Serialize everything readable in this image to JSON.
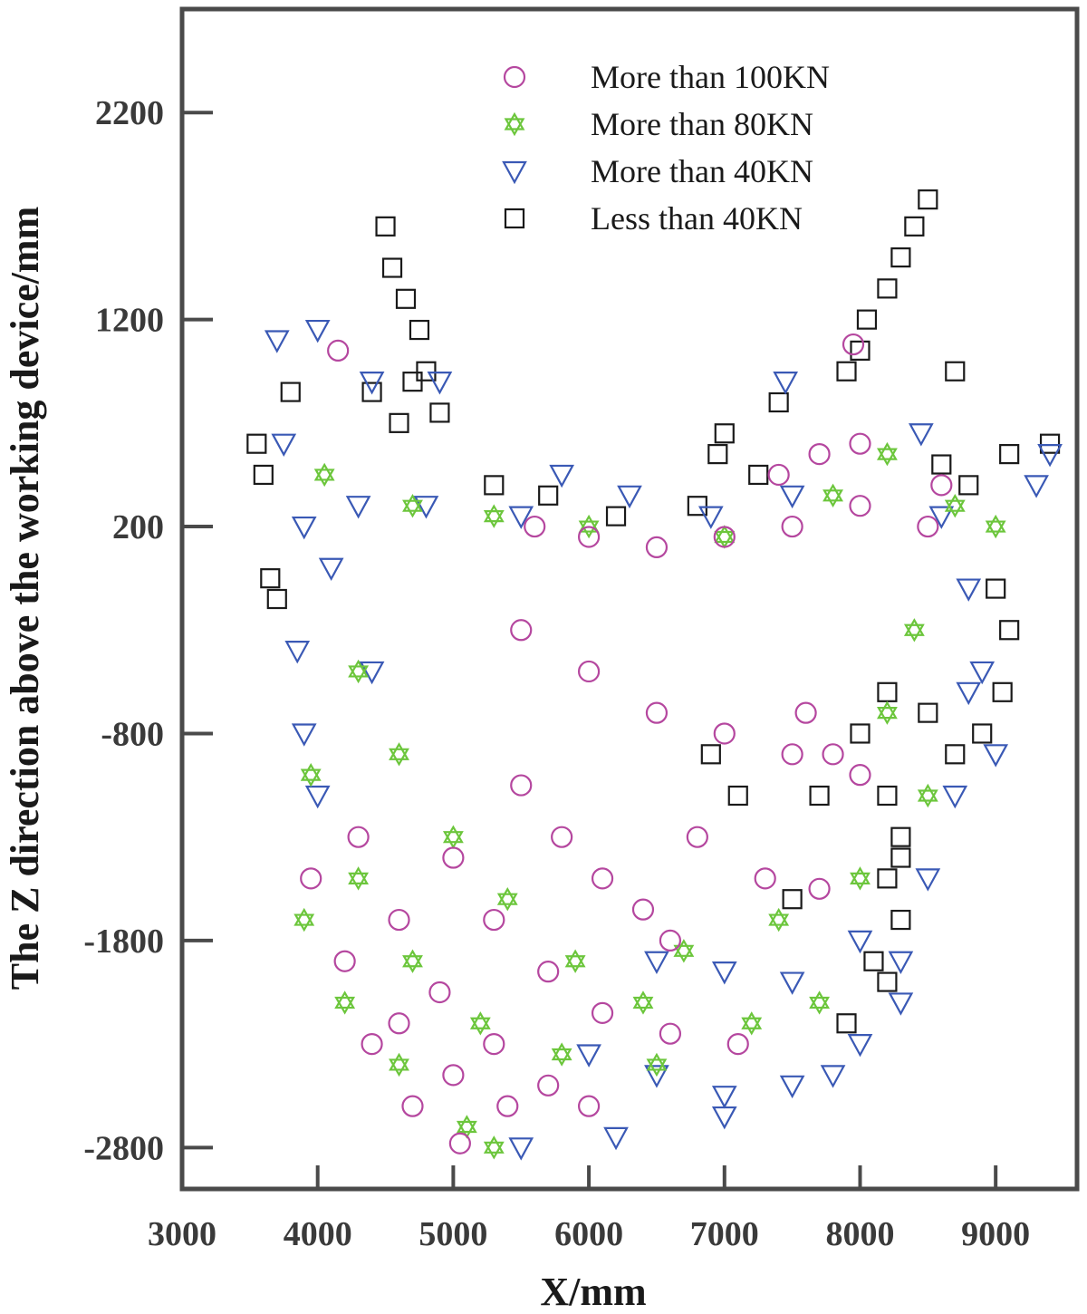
{
  "chart_data": {
    "type": "scatter",
    "title": "",
    "xlabel": "X/mm",
    "ylabel": "The Z direction above the working device/mm",
    "xlim": [
      3000,
      9600
    ],
    "ylim": [
      -3000,
      2700
    ],
    "xticks": [
      3000,
      4000,
      5000,
      6000,
      7000,
      8000,
      9000
    ],
    "xtick_labels": [
      "3000",
      "4000",
      "5000",
      "6000",
      "7000",
      "8000",
      "9000"
    ],
    "yticks": [
      -2800,
      -1800,
      -800,
      200,
      1200,
      2200
    ],
    "ytick_labels": [
      "-2800",
      "-1800",
      "-800",
      "200",
      "1200",
      "2200"
    ],
    "grid": false,
    "legend_position": "top-right",
    "series": [
      {
        "name": "More than 100KN",
        "marker": "circle",
        "color": "#b5479f",
        "points": [
          [
            4150,
            1050
          ],
          [
            7950,
            1080
          ],
          [
            5500,
            -1050
          ],
          [
            5800,
            -1300
          ],
          [
            6100,
            -1500
          ],
          [
            6400,
            -1650
          ],
          [
            6600,
            -1800
          ],
          [
            5000,
            -1400
          ],
          [
            5300,
            -1700
          ],
          [
            5700,
            -1950
          ],
          [
            6100,
            -2150
          ],
          [
            6600,
            -2250
          ],
          [
            7100,
            -2300
          ],
          [
            4300,
            -1300
          ],
          [
            4600,
            -1700
          ],
          [
            4900,
            -2050
          ],
          [
            5300,
            -2300
          ],
          [
            5700,
            -2500
          ],
          [
            6000,
            -2600
          ],
          [
            3950,
            -1500
          ],
          [
            4200,
            -1900
          ],
          [
            4600,
            -2200
          ],
          [
            5000,
            -2450
          ],
          [
            5400,
            -2600
          ],
          [
            4400,
            -2300
          ],
          [
            4700,
            -2600
          ],
          [
            5050,
            -2780
          ],
          [
            5600,
            200
          ],
          [
            6000,
            150
          ],
          [
            6500,
            100
          ],
          [
            7000,
            150
          ],
          [
            7500,
            200
          ],
          [
            8000,
            300
          ],
          [
            8500,
            200
          ],
          [
            7400,
            450
          ],
          [
            7700,
            550
          ],
          [
            8000,
            600
          ],
          [
            8600,
            400
          ],
          [
            5500,
            -300
          ],
          [
            6000,
            -500
          ],
          [
            6500,
            -700
          ],
          [
            7000,
            -800
          ],
          [
            7500,
            -900
          ],
          [
            8000,
            -1000
          ],
          [
            7600,
            -700
          ],
          [
            7800,
            -900
          ],
          [
            6800,
            -1300
          ],
          [
            7300,
            -1500
          ],
          [
            7700,
            -1550
          ]
        ]
      },
      {
        "name": "More than 80KN",
        "marker": "star",
        "color": "#6cc63c",
        "points": [
          [
            4050,
            450
          ],
          [
            4700,
            300
          ],
          [
            5300,
            250
          ],
          [
            6000,
            200
          ],
          [
            7000,
            150
          ],
          [
            7800,
            350
          ],
          [
            8200,
            550
          ],
          [
            8700,
            300
          ],
          [
            9000,
            200
          ],
          [
            4300,
            -500
          ],
          [
            4600,
            -900
          ],
          [
            5000,
            -1300
          ],
          [
            5400,
            -1600
          ],
          [
            5900,
            -1900
          ],
          [
            6400,
            -2100
          ],
          [
            7200,
            -2200
          ],
          [
            7700,
            -2100
          ],
          [
            3950,
            -1000
          ],
          [
            4300,
            -1500
          ],
          [
            4700,
            -1900
          ],
          [
            5200,
            -2200
          ],
          [
            5800,
            -2350
          ],
          [
            6500,
            -2400
          ],
          [
            3900,
            -1700
          ],
          [
            4200,
            -2100
          ],
          [
            4600,
            -2400
          ],
          [
            5100,
            -2700
          ],
          [
            5300,
            -2800
          ],
          [
            6700,
            -1850
          ],
          [
            7400,
            -1700
          ],
          [
            8000,
            -1500
          ],
          [
            8500,
            -1100
          ],
          [
            8200,
            -700
          ],
          [
            8400,
            -300
          ]
        ]
      },
      {
        "name": "More than 40KN",
        "marker": "triangle-down",
        "color": "#3a59b5",
        "points": [
          [
            3700,
            1100
          ],
          [
            4000,
            1150
          ],
          [
            4400,
            900
          ],
          [
            4900,
            900
          ],
          [
            5800,
            450
          ],
          [
            6300,
            350
          ],
          [
            6900,
            250
          ],
          [
            7500,
            350
          ],
          [
            7450,
            900
          ],
          [
            8450,
            650
          ],
          [
            3750,
            600
          ],
          [
            3900,
            200
          ],
          [
            4100,
            0
          ],
          [
            3850,
            -400
          ],
          [
            3900,
            -800
          ],
          [
            4000,
            -1100
          ],
          [
            4400,
            -500
          ],
          [
            4300,
            300
          ],
          [
            4800,
            300
          ],
          [
            5500,
            250
          ],
          [
            6000,
            -2350
          ],
          [
            6500,
            -2450
          ],
          [
            7000,
            -2550
          ],
          [
            7500,
            -2500
          ],
          [
            8000,
            -2300
          ],
          [
            8300,
            -1900
          ],
          [
            8500,
            -1500
          ],
          [
            5500,
            -2800
          ],
          [
            6200,
            -2750
          ],
          [
            7000,
            -2650
          ],
          [
            7800,
            -2450
          ],
          [
            8300,
            -2100
          ],
          [
            6500,
            -1900
          ],
          [
            7000,
            -1950
          ],
          [
            7500,
            -2000
          ],
          [
            8000,
            -1800
          ],
          [
            8800,
            -100
          ],
          [
            8900,
            -500
          ],
          [
            9000,
            -900
          ],
          [
            9300,
            400
          ],
          [
            9400,
            550
          ],
          [
            8600,
            250
          ],
          [
            8700,
            -1100
          ],
          [
            8800,
            -600
          ]
        ]
      },
      {
        "name": "Less than 40KN",
        "marker": "square",
        "color": "#1a1a1a",
        "points": [
          [
            3550,
            600
          ],
          [
            3650,
            -50
          ],
          [
            3700,
            -150
          ],
          [
            3600,
            450
          ],
          [
            3800,
            850
          ],
          [
            4500,
            1650
          ],
          [
            4550,
            1450
          ],
          [
            4650,
            1300
          ],
          [
            4750,
            1150
          ],
          [
            4800,
            950
          ],
          [
            4400,
            850
          ],
          [
            4600,
            700
          ],
          [
            4900,
            750
          ],
          [
            4700,
            900
          ],
          [
            5300,
            400
          ],
          [
            5700,
            350
          ],
          [
            6200,
            250
          ],
          [
            6800,
            300
          ],
          [
            7000,
            650
          ],
          [
            6950,
            550
          ],
          [
            7400,
            800
          ],
          [
            7250,
            450
          ],
          [
            7900,
            950
          ],
          [
            8000,
            1050
          ],
          [
            8050,
            1200
          ],
          [
            8200,
            1350
          ],
          [
            8300,
            1500
          ],
          [
            8400,
            1650
          ],
          [
            8500,
            1780
          ],
          [
            8700,
            950
          ],
          [
            8600,
            500
          ],
          [
            8800,
            400
          ],
          [
            9100,
            550
          ],
          [
            9400,
            600
          ],
          [
            9000,
            -100
          ],
          [
            9100,
            -300
          ],
          [
            9050,
            -600
          ],
          [
            8900,
            -800
          ],
          [
            8700,
            -900
          ],
          [
            8500,
            -700
          ],
          [
            8200,
            -600
          ],
          [
            8000,
            -800
          ],
          [
            8200,
            -1100
          ],
          [
            8300,
            -1300
          ],
          [
            8200,
            -1500
          ],
          [
            8300,
            -1700
          ],
          [
            8100,
            -1900
          ],
          [
            8200,
            -2000
          ],
          [
            7900,
            -2200
          ],
          [
            8300,
            -1400
          ],
          [
            7700,
            -1100
          ],
          [
            7500,
            -1600
          ],
          [
            7100,
            -1100
          ],
          [
            6900,
            -900
          ]
        ]
      }
    ]
  }
}
